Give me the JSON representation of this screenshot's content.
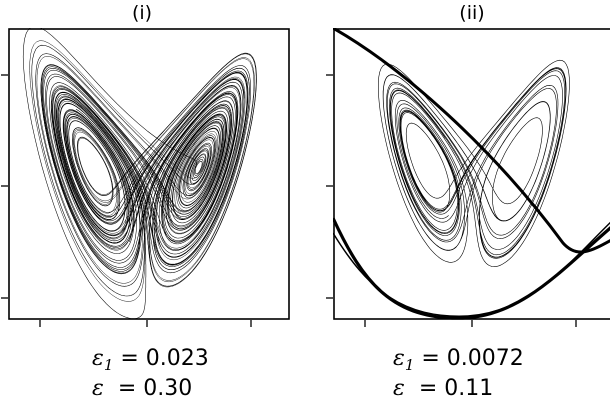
{
  "panels": [
    {
      "title": "(i)",
      "eps1_symbol": "ε",
      "eps1_sub": "1",
      "eps1_eq": "= 0.023",
      "eps_symbol": "ε",
      "eps_eq": "= 0.30"
    },
    {
      "title": "(ii)",
      "eps1_symbol": "ε",
      "eps1_sub": "1",
      "eps1_eq": "= 0.0072",
      "eps_symbol": "ε",
      "eps_eq": "= 0.11"
    }
  ],
  "chart_data": [
    {
      "type": "line",
      "title": "(i)",
      "xlabel": "",
      "ylabel": "",
      "x_tick_count": 3,
      "y_tick_count": 3,
      "grid": false,
      "series": [
        {
          "values": []
        }
      ],
      "color": "#000000"
    },
    {
      "type": "line",
      "title": "(ii)",
      "xlabel": "",
      "ylabel": "",
      "x_tick_count": 3,
      "y_tick_count": 3,
      "grid": false,
      "series": [
        {
          "values": []
        }
      ],
      "color": "#000000"
    }
  ]
}
